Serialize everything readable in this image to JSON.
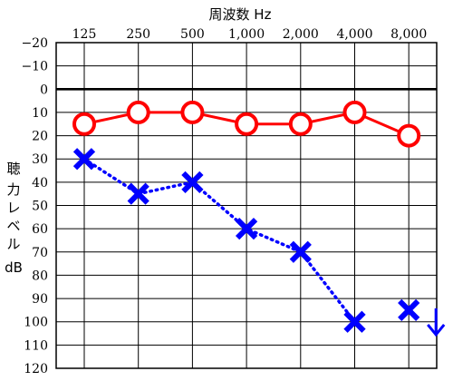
{
  "chart_data": {
    "type": "line",
    "title": "周波数 Hz",
    "xlabel": "周波数 Hz",
    "ylabel": [
      "聴",
      "力",
      "レ",
      "ベ",
      "ル",
      "dB"
    ],
    "categories": [
      "125",
      "250",
      "500",
      "1,000",
      "2,000",
      "4,000",
      "8,000"
    ],
    "ylim": [
      -20,
      120
    ],
    "ytick_step": 10,
    "y_inverted": true,
    "grid": true,
    "zero_line": true,
    "series": [
      {
        "marker": "circle",
        "line": "solid",
        "color": "#ff0000",
        "values": [
          15,
          10,
          10,
          15,
          15,
          10,
          20
        ]
      },
      {
        "marker": "cross",
        "line": "dotted",
        "color": "#0000ff",
        "values": [
          30,
          45,
          40,
          60,
          70,
          100,
          95
        ]
      }
    ],
    "annotations": [
      {
        "type": "down-arrow",
        "category": "8,000",
        "series": 1,
        "color": "#0000ff"
      }
    ]
  }
}
